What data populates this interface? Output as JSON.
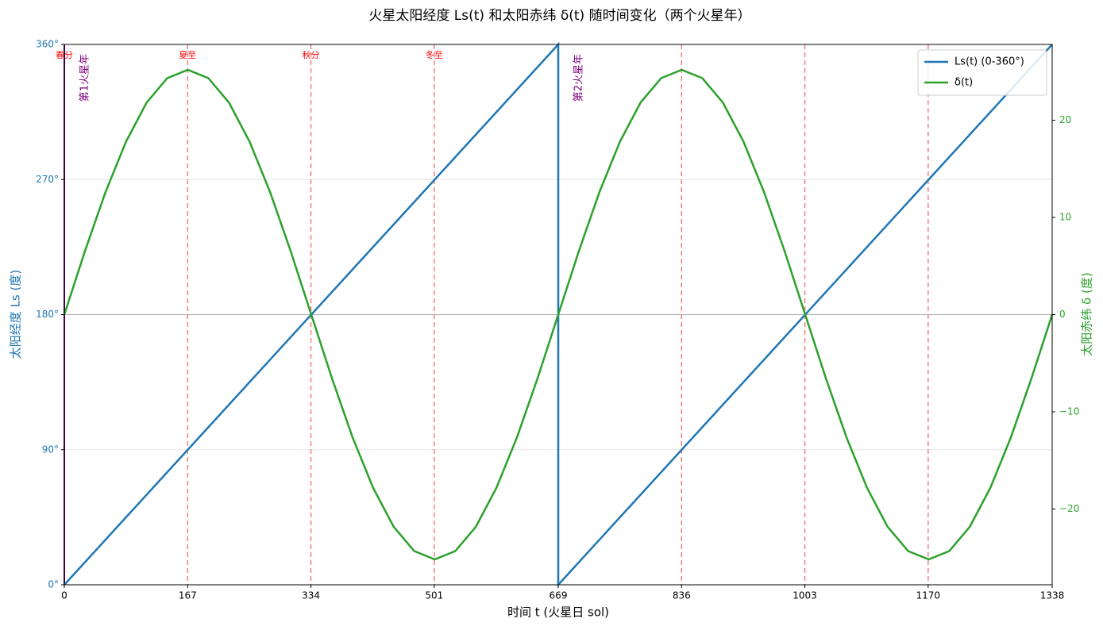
{
  "chart_data": {
    "type": "line",
    "title": "火星太阳经度 Ls(t) 和太阳赤纬 δ(t) 随时间变化（两个火星年）",
    "x_label": "时间 t (火星日 sol)",
    "y_label": "太阳经度 Ls (度)",
    "y2_label": "太阳赤纬 δ (度)",
    "xlim": [
      0,
      1338
    ],
    "xticks": [
      0,
      167,
      334,
      501,
      669,
      836,
      1003,
      1170,
      1338
    ],
    "ylim": [
      0,
      360
    ],
    "yticks": [
      {
        "value": 0,
        "label": "0°"
      },
      {
        "value": 90,
        "label": "90°"
      },
      {
        "value": 180,
        "label": "180°"
      },
      {
        "value": 270,
        "label": "270°"
      },
      {
        "value": 360,
        "label": "360°"
      }
    ],
    "y2lim": [
      -27.8,
      27.8
    ],
    "y2ticks": [
      {
        "value": -20,
        "label": "−20"
      },
      {
        "value": -10,
        "label": "−10"
      },
      0,
      10,
      20
    ],
    "grid": true,
    "legend": "upper right",
    "series": [
      {
        "name": "Ls(t) (0-360°)",
        "color": "#1f77b4",
        "axis": "y",
        "x": [
          0,
          669,
          669,
          1338
        ],
        "values": [
          0,
          360,
          0,
          360
        ]
      },
      {
        "name": "δ(t)",
        "color": "#2ca02c",
        "axis": "y2",
        "x": [
          0,
          27.875,
          55.75,
          83.625,
          111.5,
          139.375,
          167.25,
          195.125,
          223,
          250.875,
          278.75,
          306.625,
          334.5,
          362.375,
          390.25,
          418.125,
          446,
          473.875,
          501.75,
          529.625,
          557.5,
          585.375,
          613.25,
          641.125,
          669,
          696.875,
          724.75,
          752.625,
          780.5,
          808.375,
          836.25,
          864.125,
          892,
          919.875,
          947.75,
          975.625,
          1003.5,
          1031.375,
          1059.25,
          1087.125,
          1115,
          1142.875,
          1170.75,
          1198.625,
          1226.5,
          1254.375,
          1282.25,
          1310.125,
          1338
        ],
        "values": [
          0,
          6.52,
          12.6,
          17.81,
          21.82,
          24.33,
          25.19,
          24.33,
          21.82,
          17.81,
          12.6,
          6.52,
          0,
          -6.52,
          -12.6,
          -17.81,
          -21.82,
          -24.33,
          -25.19,
          -24.33,
          -21.82,
          -17.81,
          -12.6,
          -6.52,
          0,
          6.52,
          12.6,
          17.81,
          21.82,
          24.33,
          25.19,
          24.33,
          21.82,
          17.81,
          12.6,
          6.52,
          0,
          -6.52,
          -12.6,
          -17.81,
          -21.82,
          -24.33,
          -25.19,
          -24.33,
          -21.82,
          -17.81,
          -12.6,
          -6.52,
          0
        ]
      }
    ],
    "season_lines": {
      "color": "#f08080",
      "x": [
        167,
        334,
        501,
        836,
        1003,
        1170
      ]
    },
    "season_labels": [
      {
        "x": 0,
        "text": "春分"
      },
      {
        "x": 167,
        "text": "夏至"
      },
      {
        "x": 334,
        "text": "秋分"
      },
      {
        "x": 501,
        "text": "冬至"
      }
    ],
    "year_markers": {
      "color": "#800080",
      "items": [
        {
          "x": 0,
          "text": "第1火星年"
        },
        {
          "x": 669,
          "text": "第2火星年"
        }
      ]
    }
  }
}
